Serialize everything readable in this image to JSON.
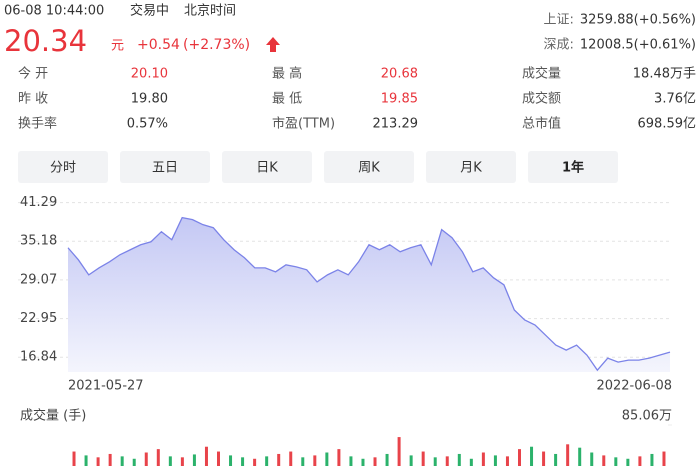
{
  "header": {
    "time": "06-08 10:44:00",
    "status": "交易中",
    "timezone": "北京时间",
    "price": "20.34",
    "unit": "元",
    "change": "+0.54",
    "change_pct": "(+2.73%)"
  },
  "indices": [
    {
      "label": "上证:",
      "value": "3259.88(+0.56%)"
    },
    {
      "label": "深成:",
      "value": "12008.5(+0.61%)"
    }
  ],
  "stats": [
    [
      {
        "label": "今 开",
        "value": "20.10",
        "up": true
      },
      {
        "label": "最 高",
        "value": "20.68",
        "up": true
      },
      {
        "label": "成交量",
        "value": "18.48万手",
        "up": false
      }
    ],
    [
      {
        "label": "昨 收",
        "value": "19.80",
        "up": false
      },
      {
        "label": "最 低",
        "value": "19.85",
        "up": true
      },
      {
        "label": "成交额",
        "value": "3.76亿",
        "up": false
      }
    ],
    [
      {
        "label": "换手率",
        "value": "0.57%",
        "up": false
      },
      {
        "label": "市盈(TTM)",
        "value": "213.29",
        "up": false
      },
      {
        "label": "总市值",
        "value": "698.59亿",
        "up": false
      }
    ]
  ],
  "tabs": [
    "分时",
    "五日",
    "日K",
    "周K",
    "月K",
    "1年"
  ],
  "selected_tab": 5,
  "chart_data": [
    {
      "type": "line",
      "color": "#7b83e8",
      "x_labels": [
        "2021-05-27",
        "2022-06-08"
      ],
      "values": [
        34.15,
        32.24,
        29.86,
        30.97,
        31.93,
        33.04,
        33.83,
        34.62,
        35.1,
        36.69,
        35.42,
        38.91,
        38.59,
        37.8,
        37.32,
        35.42,
        33.83,
        32.56,
        30.97,
        30.97,
        30.34,
        31.45,
        31.13,
        30.66,
        28.75,
        29.86,
        30.66,
        29.86,
        31.93,
        34.62,
        33.83,
        34.62,
        33.51,
        34.15,
        34.62,
        31.45,
        37.01,
        35.74,
        33.51,
        30.34,
        30.97,
        29.39,
        28.28,
        24.31,
        22.72,
        21.93,
        20.34,
        18.75,
        17.96,
        18.75,
        17.17,
        14.79,
        16.69,
        16.06,
        16.38,
        16.38,
        16.69,
        17.17,
        17.64
      ],
      "ylim": [
        14.5,
        41.7
      ],
      "yticks": [
        41.29,
        35.18,
        29.07,
        22.95,
        16.84
      ],
      "grid": true
    },
    {
      "type": "bar",
      "title": "成交量 (手)",
      "values": [
        30,
        22,
        18,
        25,
        20,
        15,
        28,
        35,
        20,
        18,
        24,
        40,
        30,
        22,
        18,
        15,
        20,
        25,
        30,
        18,
        22,
        28,
        35,
        20,
        15,
        18,
        25,
        60,
        22,
        30,
        18,
        20,
        25,
        15,
        28,
        22,
        20,
        35,
        40,
        30,
        25,
        45,
        38,
        28,
        22,
        18,
        15,
        20,
        25,
        30
      ],
      "colors": [
        "#e8434a",
        "#2bb26b",
        "#e8434a",
        "#e8434a",
        "#2bb26b",
        "#2bb26b",
        "#e8434a",
        "#e8434a",
        "#2bb26b",
        "#e8434a",
        "#2bb26b",
        "#e8434a",
        "#e8434a",
        "#2bb26b",
        "#2bb26b",
        "#e8434a",
        "#2bb26b",
        "#e8434a",
        "#e8434a",
        "#2bb26b",
        "#e8434a",
        "#2bb26b",
        "#e8434a",
        "#2bb26b",
        "#2bb26b",
        "#e8434a",
        "#2bb26b",
        "#e8434a",
        "#2bb26b",
        "#e8434a",
        "#2bb26b",
        "#e8434a",
        "#2bb26b",
        "#2bb26b",
        "#e8434a",
        "#2bb26b",
        "#e8434a",
        "#e8434a",
        "#2bb26b",
        "#e8434a",
        "#2bb26b",
        "#e8434a",
        "#2bb26b",
        "#2bb26b",
        "#e8434a",
        "#2bb26b",
        "#2bb26b",
        "#e8434a",
        "#2bb26b",
        "#e8434a"
      ],
      "ylim": [
        0,
        85.06
      ],
      "yticks": [
        {
          "value": 85.06,
          "label": "85.06万"
        }
      ]
    }
  ]
}
